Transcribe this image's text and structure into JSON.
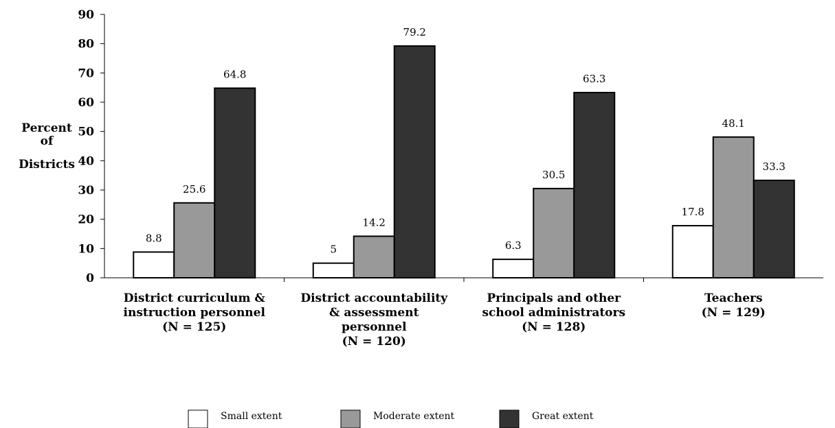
{
  "chart_data": {
    "type": "bar",
    "ylabel_lines": [
      "Percent",
      "of",
      "Districts"
    ],
    "ylim": [
      0,
      90
    ],
    "yticks": [
      "0",
      "10",
      "20",
      "30",
      "40",
      "50",
      "60",
      "70",
      "80",
      "90"
    ],
    "categories": [
      {
        "lines": [
          "District curriculum &",
          "instruction personnel",
          "(N = 125)"
        ]
      },
      {
        "lines": [
          "District accountability",
          "& assessment",
          "personnel",
          "(N = 120)"
        ]
      },
      {
        "lines": [
          "Principals and other",
          "school administrators",
          "(N = 128)"
        ]
      },
      {
        "lines": [
          "Teachers",
          "(N = 129)"
        ]
      }
    ],
    "series": [
      {
        "name": "Small extent",
        "color": "#ffffff",
        "values": [
          8.8,
          5,
          6.3,
          17.8
        ],
        "labels": [
          "8.8",
          "5",
          "6.3",
          "17.8"
        ]
      },
      {
        "name": "Moderate extent",
        "color": "#999999",
        "values": [
          25.6,
          14.2,
          30.5,
          48.1
        ],
        "labels": [
          "25.6",
          "14.2",
          "30.5",
          "48.1"
        ]
      },
      {
        "name": "Great extent",
        "color": "#333333",
        "values": [
          64.8,
          79.2,
          63.3,
          33.3
        ],
        "labels": [
          "64.8",
          "79.2",
          "63.3",
          "33.3"
        ]
      }
    ],
    "grid": false,
    "legend_position": "bottom"
  }
}
